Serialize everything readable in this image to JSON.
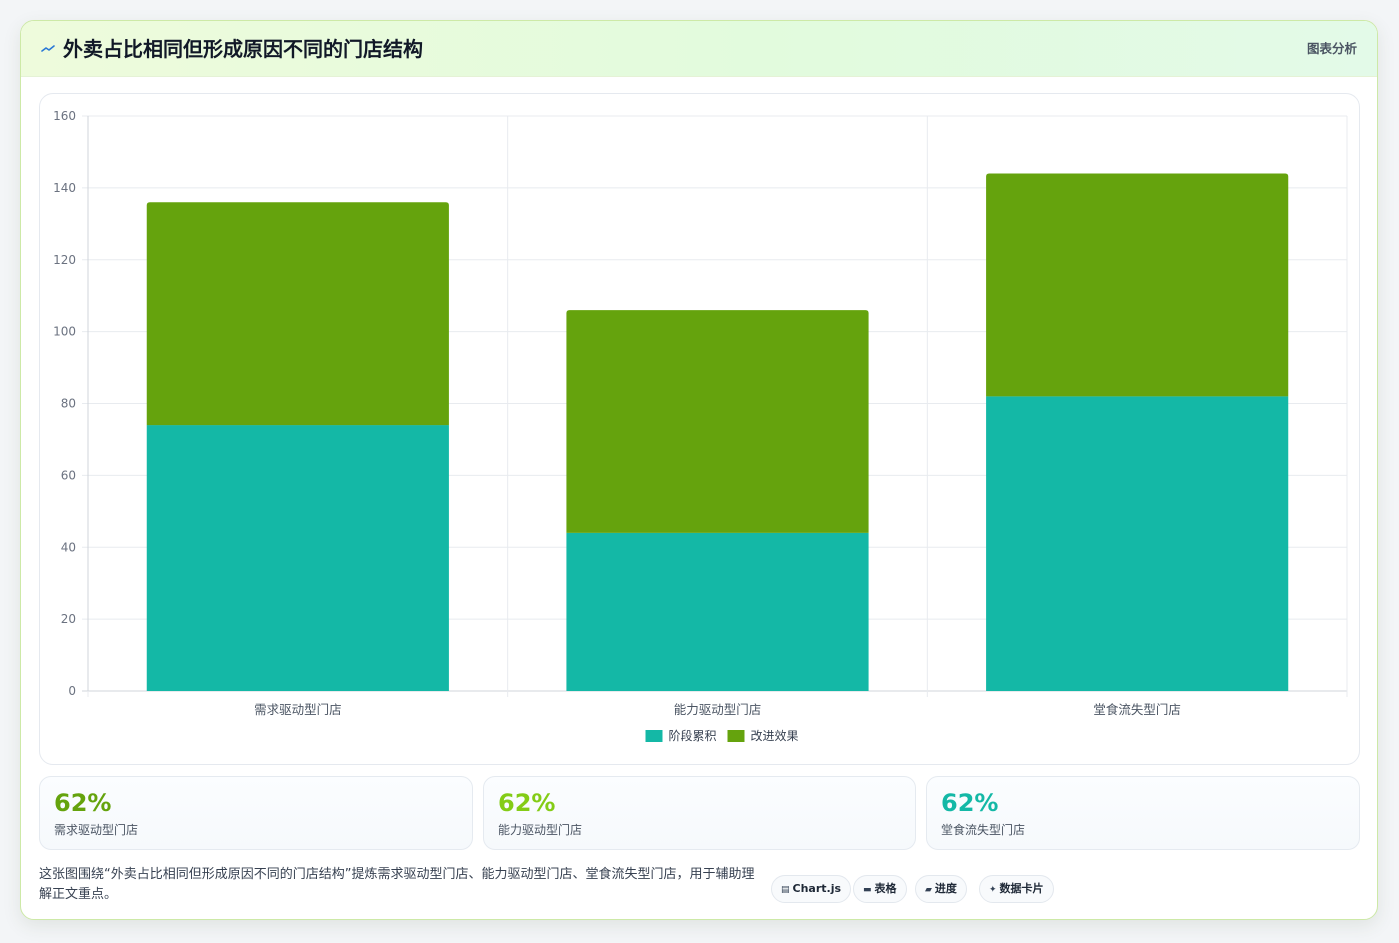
{
  "header": {
    "icon": "sparkline-icon",
    "title": "外卖占比相同但形成原因不同的门店结构",
    "right_label": "图表分析"
  },
  "chart_data": {
    "type": "bar",
    "stacked": true,
    "categories": [
      "需求驱动型门店",
      "能力驱动型门店",
      "堂食流失型门店"
    ],
    "series": [
      {
        "name": "阶段累积",
        "color": "#14b8a6",
        "values": [
          74,
          44,
          82
        ]
      },
      {
        "name": "改进效果",
        "color": "#65a30d",
        "values": [
          62,
          62,
          62
        ]
      }
    ],
    "ylim": [
      0,
      160
    ],
    "yticks": [
      0,
      20,
      40,
      60,
      80,
      100,
      120,
      140,
      160
    ],
    "grid": true,
    "legend_position": "bottom",
    "xlabel": "",
    "ylabel": ""
  },
  "stats": [
    {
      "value": "62%",
      "label": "需求驱动型门店",
      "color": "#65a30d"
    },
    {
      "value": "62%",
      "label": "能力驱动型门店",
      "color": "#84cc16"
    },
    {
      "value": "62%",
      "label": "堂食流失型门店",
      "color": "#14b8a6"
    }
  ],
  "description": "这张图围绕“外卖占比相同但形成原因不同的门店结构”提炼需求驱动型门店、能力驱动型门店、堂食流失型门店，用于辅助理解正文重点。",
  "tags": [
    {
      "icon": "chart-icon",
      "glyph": "▤",
      "label": "Chart.js"
    },
    {
      "icon": "table-icon",
      "glyph": "▬",
      "label": "表格"
    },
    {
      "icon": "progress-icon",
      "glyph": "▰",
      "label": "进度"
    },
    {
      "icon": "sparkle-icon",
      "glyph": "✦",
      "label": "数据卡片"
    }
  ]
}
